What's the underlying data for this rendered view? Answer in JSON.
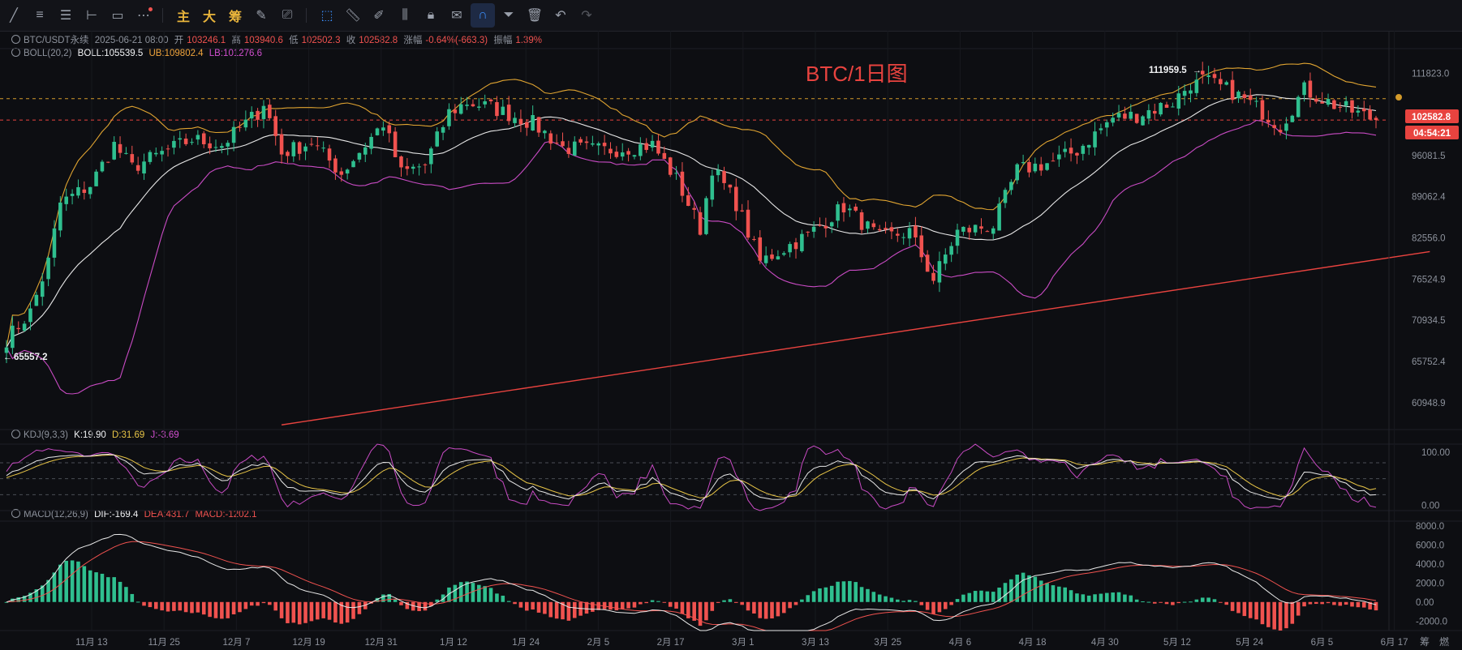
{
  "toolbar": {
    "cn_main": "主",
    "cn_big": "大",
    "cn_chip": "筹"
  },
  "header": {
    "symbol": "BTC/USDT永续",
    "datetime": "2025-06-21 08:00",
    "open_label": "开",
    "open": "103246.1",
    "high_label": "高",
    "high": "103940.6",
    "low_label": "低",
    "low": "102502.3",
    "close_label": "收",
    "close": "102582.8",
    "change_label": "涨幅",
    "change": "-0.64%(-663.3)",
    "amp_label": "振幅",
    "amp": "1.39%"
  },
  "boll": {
    "name": "BOLL(20,2)",
    "mid": "BOLL:105539.5",
    "ub": "UB:109802.4",
    "lb": "LB:101276.6"
  },
  "kdj": {
    "name": "KDJ(9,3,3)",
    "k": "K:19.90",
    "d": "D:31.69",
    "j": "J:-3.69"
  },
  "macd": {
    "name": "MACD(12,26,9)",
    "dif": "DIF:-169.4",
    "dea": "DEA:431.7",
    "macd": "MACD:-1202.1"
  },
  "annotations": {
    "watermark": "BTC/1日图",
    "high_marker": "111959.5",
    "low_marker": "65557.2",
    "last_price": "102582.8",
    "countdown": "04:54:21"
  },
  "bottom_right": {
    "chip": "筹",
    "label": "燃"
  },
  "colors": {
    "up": "#2fbf8f",
    "down": "#f0524f",
    "boll_mid": "#e8e8e8",
    "boll_ub": "#e0a431",
    "boll_lb": "#c94bc4",
    "kdj_k": "#e8e8e8",
    "kdj_d": "#e8c547",
    "kdj_j": "#c94bc4",
    "trend": "#e8433f"
  },
  "chart_data": {
    "type": "candlestick",
    "interval": "1D",
    "x_tick_labels": [
      "11月 13",
      "11月 25",
      "12月 7",
      "12月 19",
      "12月 31",
      "1月 12",
      "1月 24",
      "2月 5",
      "2月 17",
      "3月 1",
      "3月 13",
      "3月 25",
      "4月 6",
      "4月 18",
      "4月 30",
      "5月 12",
      "5月 24",
      "6月 5",
      "6月 17"
    ],
    "price_ticks": [
      111823.0,
      102582.8,
      96081.5,
      89062.4,
      82556.0,
      76524.9,
      70934.5,
      65752.4,
      60948.9
    ],
    "price_tick_labels": [
      "111823.0",
      "",
      "96081.5",
      "89062.4",
      "82556.0",
      "76524.9",
      "70934.5",
      "65752.4",
      "60948.9"
    ],
    "price_range": [
      58000,
      117000
    ],
    "price_scale": "log",
    "kdj_ticks": [
      "100.00",
      "0.00"
    ],
    "kdj_range": [
      -10,
      115
    ],
    "macd_ticks": [
      "8000.0",
      "6000.0",
      "4000.0",
      "2000.0",
      "0.00",
      "-2000.0"
    ],
    "macd_range": [
      -3000,
      8500
    ],
    "key_points": [
      {
        "x": "11月 4",
        "label": "65557.2",
        "value": 65557.2
      },
      {
        "x": "5月 22",
        "label": "111959.5",
        "value": 111959.5
      }
    ],
    "price_path": [
      [
        "2024-11-04",
        68500
      ],
      [
        "2024-11-08",
        72000
      ],
      [
        "2024-11-11",
        79000
      ],
      [
        "2024-11-13",
        88000
      ],
      [
        "2024-11-18",
        91000
      ],
      [
        "2024-11-22",
        98000
      ],
      [
        "2024-11-25",
        94000
      ],
      [
        "2024-11-30",
        96500
      ],
      [
        "2024-12-05",
        99000
      ],
      [
        "2024-12-10",
        98000
      ],
      [
        "2024-12-16",
        104000
      ],
      [
        "2024-12-17",
        106000
      ],
      [
        "2024-12-20",
        96500
      ],
      [
        "2024-12-25",
        98500
      ],
      [
        "2024-12-30",
        93000
      ],
      [
        "2025-01-06",
        102000
      ],
      [
        "2025-01-09",
        93000
      ],
      [
        "2025-01-13",
        94500
      ],
      [
        "2025-01-17",
        104000
      ],
      [
        "2025-01-20",
        106000
      ],
      [
        "2025-01-24",
        105000
      ],
      [
        "2025-01-31",
        102000
      ],
      [
        "2025-02-05",
        97500
      ],
      [
        "2025-02-12",
        97000
      ],
      [
        "2025-02-20",
        98000
      ],
      [
        "2025-02-24",
        92000
      ],
      [
        "2025-02-28",
        84000
      ],
      [
        "2025-03-02",
        94000
      ],
      [
        "2025-03-06",
        88000
      ],
      [
        "2025-03-10",
        79000
      ],
      [
        "2025-03-18",
        83000
      ],
      [
        "2025-03-24",
        87500
      ],
      [
        "2025-03-30",
        82500
      ],
      [
        "2025-04-04",
        83500
      ],
      [
        "2025-04-08",
        76500
      ],
      [
        "2025-04-12",
        83500
      ],
      [
        "2025-04-18",
        84500
      ],
      [
        "2025-04-22",
        93500
      ],
      [
        "2025-04-28",
        95000
      ],
      [
        "2025-05-02",
        97000
      ],
      [
        "2025-05-08",
        103000
      ],
      [
        "2025-05-12",
        103500
      ],
      [
        "2025-05-18",
        106000
      ],
      [
        "2025-05-22",
        111000
      ],
      [
        "2025-05-28",
        108000
      ],
      [
        "2025-06-01",
        105000
      ],
      [
        "2025-06-05",
        101500
      ],
      [
        "2025-06-09",
        108500
      ],
      [
        "2025-06-14",
        105500
      ],
      [
        "2025-06-21",
        102582.8
      ]
    ],
    "series": [
      {
        "name": "BOLL",
        "value": 105539.5
      },
      {
        "name": "UB",
        "value": 109802.4
      },
      {
        "name": "LB",
        "value": 101276.6
      },
      {
        "name": "K",
        "value": 19.9
      },
      {
        "name": "D",
        "value": 31.69
      },
      {
        "name": "J",
        "value": -3.69
      },
      {
        "name": "DIF",
        "value": -169.4
      },
      {
        "name": "DEA",
        "value": 431.7
      },
      {
        "name": "MACD",
        "value": -1202.1
      }
    ],
    "trendline": [
      [
        "2024-12-20",
        58500
      ],
      [
        "2025-06-30",
        80500
      ]
    ]
  }
}
